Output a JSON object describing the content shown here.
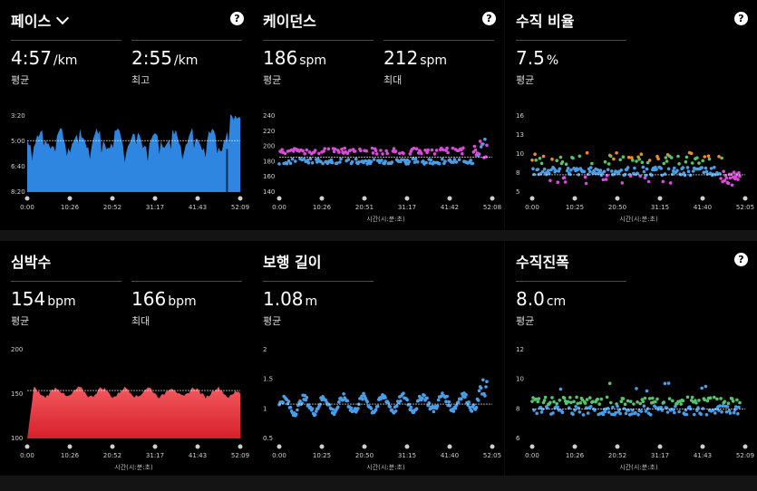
{
  "panels": [
    {
      "id": "pace",
      "title": "페이스",
      "has_dropdown": true,
      "has_help": true,
      "stats": [
        {
          "value": "4:57",
          "unit": "/km",
          "label": "평균"
        },
        {
          "value": "2:55",
          "unit": "/km",
          "label": "최고"
        }
      ]
    },
    {
      "id": "cadence",
      "title": "케이던스",
      "has_help": true,
      "stats": [
        {
          "value": "186",
          "unit": "spm",
          "label": "평균"
        },
        {
          "value": "212",
          "unit": "spm",
          "label": "최대"
        }
      ]
    },
    {
      "id": "vertical-ratio",
      "title": "수직 비율",
      "has_help": true,
      "stats": [
        {
          "value": "7.5",
          "unit": "%",
          "label": "평균"
        }
      ]
    },
    {
      "id": "heart-rate",
      "title": "심박수",
      "has_help": false,
      "stats": [
        {
          "value": "154",
          "unit": "bpm",
          "label": "평균"
        },
        {
          "value": "166",
          "unit": "bpm",
          "label": "최대"
        }
      ]
    },
    {
      "id": "stride-length",
      "title": "보행 길이",
      "has_help": false,
      "stats": [
        {
          "value": "1.08",
          "unit": "m",
          "label": "평균"
        }
      ]
    },
    {
      "id": "vertical-oscillation",
      "title": "수직진폭",
      "has_help": true,
      "stats": [
        {
          "value": "8.0",
          "unit": "cm",
          "label": "평균"
        }
      ]
    }
  ],
  "help_glyph": "?",
  "chart_data": [
    {
      "type": "area",
      "panel": "pace",
      "y_ticks": [
        "3:20",
        "5:00",
        "6:40",
        "8:20"
      ],
      "x_ticks": [
        "0:00",
        "10:26",
        "20:52",
        "31:17",
        "41:43",
        "52:09"
      ],
      "ylim_min_per_km": [
        2.5,
        9.0
      ],
      "reversed_y": true,
      "avg_line": 4.95,
      "color": "#2f86e0"
    },
    {
      "type": "scatter",
      "panel": "cadence",
      "y_ticks": [
        "240",
        "220",
        "200",
        "180",
        "160",
        "140"
      ],
      "x_ticks": [
        "0:00",
        "10:26",
        "20:51",
        "31:17",
        "41:42",
        "52:08"
      ],
      "x_title": "시간(시:분:초)",
      "ylim": [
        135,
        245
      ],
      "avg_line": 186,
      "colors": [
        "#d94bd9",
        "#4a9ee8",
        "#f08a2c"
      ]
    },
    {
      "type": "scatter",
      "panel": "vertical-ratio",
      "y_ticks": [
        "16",
        "13",
        "10",
        "8",
        "5"
      ],
      "x_ticks": [
        "0:00",
        "10:25",
        "20:50",
        "31:15",
        "41:40",
        "52:05"
      ],
      "x_title": "시간(시:분:초)",
      "ylim": [
        4,
        17
      ],
      "avg_line": 7.5,
      "colors": [
        "#4a9ee8",
        "#55c46a",
        "#f08a2c",
        "#d94bd9",
        "#e04040"
      ]
    },
    {
      "type": "area",
      "panel": "heart-rate",
      "y_ticks": [
        "200",
        "150",
        "100"
      ],
      "x_ticks": [
        "0:00",
        "10:26",
        "20:52",
        "31:17",
        "41:43",
        "52:09"
      ],
      "x_title": "시간(시:분:초)",
      "ylim": [
        90,
        205
      ],
      "avg_line": 154,
      "color": "#e8393f"
    },
    {
      "type": "scatter",
      "panel": "stride-length",
      "y_ticks": [
        "2",
        "1.5",
        "1",
        "0.5"
      ],
      "x_ticks": [
        "0:00",
        "10:25",
        "20:50",
        "31:15",
        "41:40",
        "52:05"
      ],
      "x_title": "시간(시:분:초)",
      "ylim": [
        0.3,
        2.2
      ],
      "avg_line": 1.08,
      "colors": [
        "#4a9ee8"
      ]
    },
    {
      "type": "scatter",
      "panel": "vertical-oscillation",
      "y_ticks": [
        "12",
        "10",
        "8",
        "6"
      ],
      "x_ticks": [
        "0:00",
        "10:26",
        "20:52",
        "31:17",
        "41:43",
        "52:09"
      ],
      "x_title": "시간(시:분:초)",
      "ylim": [
        4.5,
        12.8
      ],
      "avg_line": 8.0,
      "colors": [
        "#4a9ee8",
        "#55c46a"
      ]
    }
  ]
}
